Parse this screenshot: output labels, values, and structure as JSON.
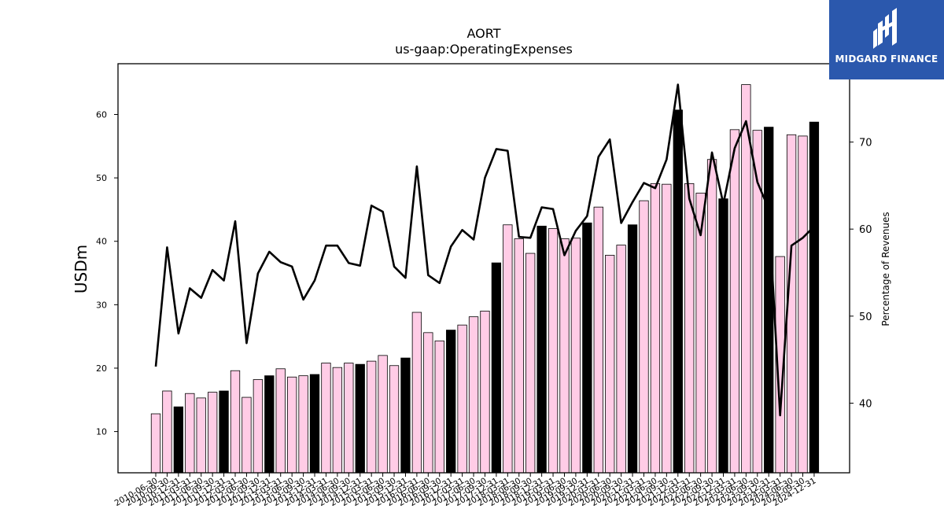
{
  "brand": {
    "name": "MIDGARD FINANCE",
    "bg_color": "#2b58ad"
  },
  "chart_data": {
    "type": "bar",
    "title": "AORT",
    "subtitle": "us-gaap:OperatingExpenses",
    "ylabel": "USDm",
    "y2label": "Percentage of Revenues",
    "ylim": [
      3.5,
      68
    ],
    "y2lim": [
      32,
      79
    ],
    "yticks": [
      10,
      20,
      30,
      40,
      50,
      60
    ],
    "y2ticks": [
      40,
      50,
      60,
      70
    ],
    "grid": false,
    "colors": {
      "quarter_bar": "#ffcce6",
      "annual_bar": "#000000",
      "line": "#000000"
    },
    "categories": [
      "2010-06-30",
      "2010-09-30",
      "2010-12-31",
      "2011-03-31",
      "2011-06-30",
      "2011-09-30",
      "2011-12-31",
      "2012-03-31",
      "2012-06-30",
      "2012-09-30",
      "2012-12-31",
      "2013-03-31",
      "2013-06-30",
      "2013-09-30",
      "2013-12-31",
      "2014-03-31",
      "2014-06-30",
      "2014-09-30",
      "2014-12-31",
      "2015-03-31",
      "2015-06-30",
      "2015-09-30",
      "2015-12-31",
      "2016-03-31",
      "2016-06-30",
      "2016-09-30",
      "2016-12-31",
      "2017-03-31",
      "2017-06-30",
      "2017-09-30",
      "2017-12-31",
      "2018-03-31",
      "2018-06-30",
      "2018-09-30",
      "2018-12-31",
      "2019-03-31",
      "2019-06-30",
      "2019-09-30",
      "2019-12-31",
      "2020-03-31",
      "2020-06-30",
      "2020-09-30",
      "2020-12-31",
      "2021-03-31",
      "2021-06-30",
      "2021-09-30",
      "2021-12-31",
      "2022-03-31",
      "2022-06-30",
      "2022-09-30",
      "2022-12-31",
      "2023-03-31",
      "2023-06-30",
      "2023-09-30",
      "2023-12-31",
      "2024-03-31",
      "2024-06-30",
      "2024-09-30",
      "2024-12-31"
    ],
    "series": [
      {
        "kind": "bar",
        "values": [
          12.8,
          16.4,
          13.9,
          16.0,
          15.3,
          16.2,
          16.4,
          19.6,
          15.4,
          18.2,
          18.8,
          19.9,
          18.6,
          18.8,
          19.0,
          20.8,
          20.1,
          20.8,
          20.6,
          21.1,
          22.0,
          20.4,
          21.6,
          28.8,
          25.6,
          24.3,
          26.0,
          26.8,
          28.1,
          29.0,
          36.6,
          42.6,
          40.4,
          38.1,
          42.4,
          42.0,
          40.4,
          40.5,
          42.9,
          45.4,
          37.8,
          39.4,
          42.6,
          46.4,
          49.1,
          49.0,
          60.7,
          49.1,
          47.6,
          52.9,
          46.7,
          57.6,
          64.7,
          57.5,
          58.0,
          37.6,
          56.8,
          56.6,
          58.8
        ],
        "annual": [
          false,
          false,
          true,
          false,
          false,
          false,
          true,
          false,
          false,
          false,
          true,
          false,
          false,
          false,
          true,
          false,
          false,
          false,
          true,
          false,
          false,
          false,
          true,
          false,
          false,
          false,
          true,
          false,
          false,
          false,
          true,
          false,
          false,
          false,
          true,
          false,
          false,
          false,
          true,
          false,
          false,
          false,
          true,
          false,
          false,
          false,
          true,
          false,
          false,
          false,
          true,
          false,
          false,
          false,
          true,
          false,
          false,
          false,
          true
        ]
      },
      {
        "kind": "line",
        "axis": "right",
        "values": [
          44.2,
          57.9,
          48.0,
          53.2,
          52.1,
          55.3,
          54.1,
          60.9,
          46.9,
          54.9,
          57.4,
          56.2,
          55.7,
          51.9,
          54.1,
          58.1,
          58.1,
          56.1,
          55.8,
          62.7,
          62.0,
          55.7,
          54.4,
          67.2,
          54.7,
          53.8,
          58.0,
          59.9,
          58.8,
          65.9,
          69.2,
          69.0,
          59.1,
          59.0,
          62.5,
          62.3,
          57.0,
          59.8,
          61.5,
          68.3,
          70.3,
          60.7,
          63.1,
          65.3,
          64.7,
          68.0,
          76.6,
          63.5,
          59.3,
          68.8,
          62.9,
          69.3,
          72.4,
          65.4,
          62.3,
          38.6,
          58.1,
          59.0,
          60.3
        ]
      }
    ]
  }
}
